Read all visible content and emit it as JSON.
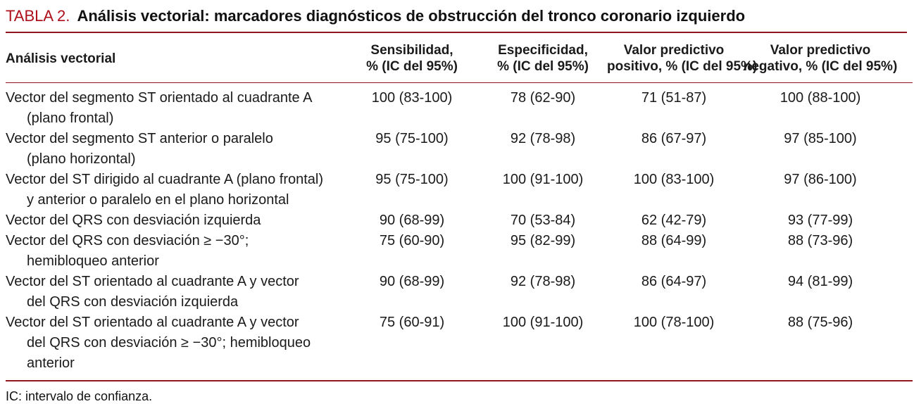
{
  "title": {
    "label": "TABLA 2.",
    "text": "Análisis vectorial: marcadores diagnósticos de obstrucción del tronco coronario izquierdo"
  },
  "colors": {
    "accent_red": "#AE101B",
    "rule_red": "#921620",
    "text": "#1a1a1a"
  },
  "table": {
    "columns": [
      {
        "line1": "Análisis vectorial",
        "line2": ""
      },
      {
        "line1": "Sensibilidad,",
        "line2": "% (IC del 95%)"
      },
      {
        "line1": "Especificidad,",
        "line2": "% (IC del 95%)"
      },
      {
        "line1": "Valor predictivo",
        "line2": "positivo, % (IC del 95%)"
      },
      {
        "line1": "Valor predictivo",
        "line2": "negativo, % (IC del 95%)"
      }
    ],
    "rows": [
      {
        "label": [
          "Vector del segmento ST orientado al cuadrante A",
          "(plano frontal)"
        ],
        "values": [
          "100 (83-100)",
          "78 (62-90)",
          "71 (51-87)",
          "100 (88-100)"
        ]
      },
      {
        "label": [
          "Vector del segmento ST anterior o paralelo",
          "(plano horizontal)"
        ],
        "values": [
          "95 (75-100)",
          "92 (78-98)",
          "86 (67-97)",
          "97 (85-100)"
        ]
      },
      {
        "label": [
          "Vector del ST dirigido al cuadrante A (plano frontal)",
          "y anterior o paralelo en el plano horizontal"
        ],
        "values": [
          "95 (75-100)",
          "100 (91-100)",
          "100 (83-100)",
          "97 (86-100)"
        ]
      },
      {
        "label": [
          "Vector del QRS con desviación izquierda"
        ],
        "values": [
          "90 (68-99)",
          "70 (53-84)",
          "62 (42-79)",
          "93 (77-99)"
        ]
      },
      {
        "label": [
          "Vector del QRS con desviación ≥ −30°;",
          "hemibloqueo anterior"
        ],
        "values": [
          "75 (60-90)",
          "95 (82-99)",
          "88 (64-99)",
          "88 (73-96)"
        ]
      },
      {
        "label": [
          "Vector del ST orientado al cuadrante A y vector",
          "del QRS con desviación izquierda"
        ],
        "values": [
          "90 (68-99)",
          "92 (78-98)",
          "86 (64-97)",
          "94 (81-99)"
        ]
      },
      {
        "label": [
          "Vector del ST orientado al cuadrante A y vector",
          "del QRS con desviación ≥ −30°; hemibloqueo anterior"
        ],
        "values": [
          "75 (60-91)",
          "100 (91-100)",
          "100 (78-100)",
          "88 (75-96)"
        ]
      }
    ]
  },
  "footnote": "IC: intervalo de confianza."
}
